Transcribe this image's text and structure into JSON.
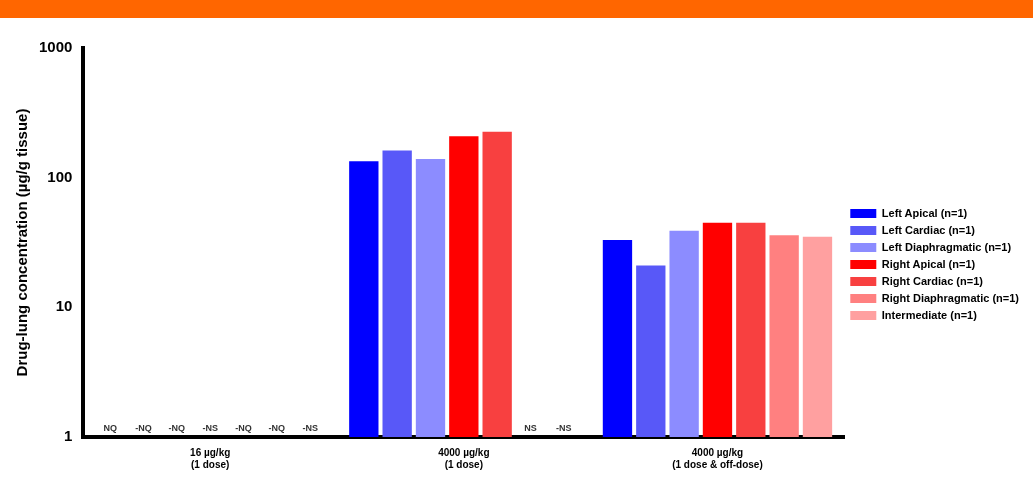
{
  "chart_data": {
    "type": "bar",
    "ylabel": "Drug-lung concentration (µg/g tissue)",
    "log": true,
    "ylim": [
      1,
      1000
    ],
    "yticks": [
      1,
      10,
      100,
      1000
    ],
    "grid": false,
    "legend": "right",
    "categories": [
      "16 µg/kg\n(1 dose)",
      "4000 µg/kg\n(1 dose)",
      "4000 µg/kg\n(1 dose & off-dose)"
    ],
    "series": [
      {
        "name": "Left Apical (n=1)",
        "color": "#0000ff",
        "values": [
          null,
          134,
          33
        ],
        "value_labels": [
          "NQ",
          null,
          null
        ]
      },
      {
        "name": "Left Cardiac (n=1)",
        "color": "#5858f8",
        "values": [
          null,
          162,
          21
        ],
        "value_labels": [
          "-NQ",
          null,
          null
        ]
      },
      {
        "name": "Left Diaphragmatic (n=1)",
        "color": "#8c8cff",
        "values": [
          null,
          139,
          39
        ],
        "value_labels": [
          "-NQ",
          null,
          null
        ]
      },
      {
        "name": "Right Apical (n=1)",
        "color": "#ff0000",
        "values": [
          null,
          209,
          45
        ],
        "value_labels": [
          "-NS",
          null,
          null
        ]
      },
      {
        "name": "Right Cardiac (n=1)",
        "color": "#f84040",
        "values": [
          null,
          226,
          45
        ],
        "value_labels": [
          "-NQ",
          null,
          null
        ]
      },
      {
        "name": "Right Diaphragmatic (n=1)",
        "color": "#ff8080",
        "values": [
          null,
          null,
          36
        ],
        "value_labels": [
          "-NQ",
          "NS",
          null
        ]
      },
      {
        "name": "Intermediate (n=1)",
        "color": "#ffa0a0",
        "values": [
          null,
          null,
          35
        ],
        "value_labels": [
          "-NS",
          "-NS",
          null
        ]
      }
    ]
  }
}
